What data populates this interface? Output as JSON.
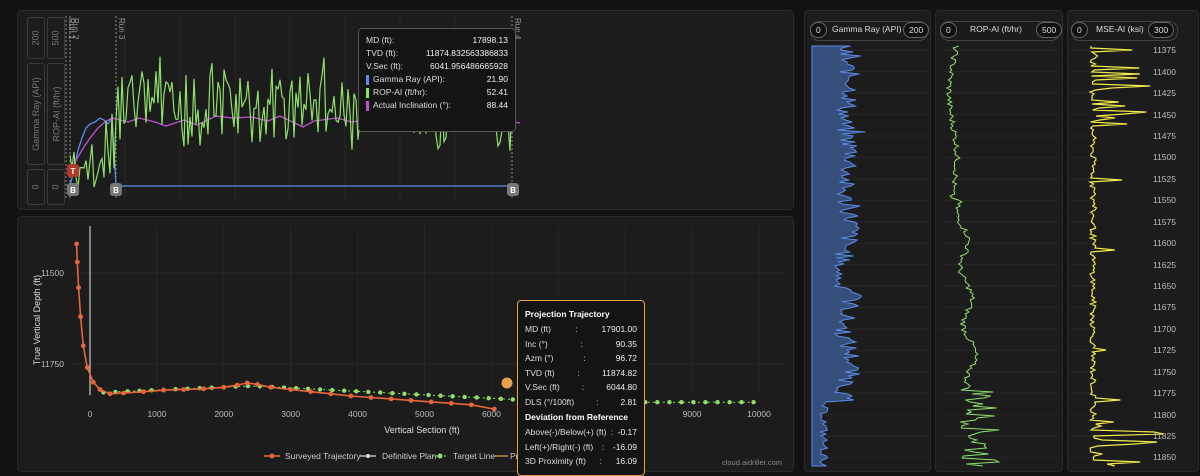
{
  "top_chart": {
    "axes": [
      {
        "label": "Gamma Ray (API)",
        "max": "200",
        "min": "0"
      },
      {
        "label": "ROP-AI (ft/hr)",
        "max": "500",
        "min": "0"
      }
    ],
    "run_labels": [
      "Run 1",
      "Run 2",
      "Run 3",
      "Run 4"
    ],
    "markers": [
      {
        "letter": "T",
        "color": "#b03a2e"
      },
      {
        "letter": "B",
        "color": "#777777"
      },
      {
        "letter": "B",
        "color": "#777777"
      },
      {
        "letter": "B",
        "color": "#777777"
      }
    ],
    "tooltip": {
      "md_label": "MD (ft):",
      "md_value": "17898.13",
      "tvd_label": "TVD (ft):",
      "tvd_value": "11874.832563386833",
      "vsec_label": "V.Sec (ft):",
      "vsec_value": "6041.956486665928",
      "series": [
        {
          "label": "Gamma Ray (API):",
          "value": "21.90",
          "color": "#5b8de8"
        },
        {
          "label": "ROP-AI (ft/hr):",
          "value": "52.41",
          "color": "#8fe06a"
        },
        {
          "label": "Actual Inclination (°):",
          "value": "88.44",
          "color": "#c050d0"
        }
      ]
    }
  },
  "section_chart": {
    "ylabel": "True Vertical Depth (ft)",
    "xlabel": "Vertical Section (ft)",
    "y_ticks": [
      "11500",
      "11750"
    ],
    "x_ticks": [
      "0",
      "1000",
      "2000",
      "3000",
      "4000",
      "5000",
      "6000",
      "8000",
      "9000",
      "10000"
    ],
    "legend": [
      {
        "label": "Surveyed Trajectory",
        "color": "#e8653a"
      },
      {
        "label": "Definitive Plan",
        "color": "#dddddd"
      },
      {
        "label": "Target Line",
        "color": "#8fe06a"
      },
      {
        "label": "Pr",
        "color": "#e8a04a"
      }
    ],
    "watermark": "cloud.aidriller.com",
    "projection": {
      "title": "Projection Trajectory",
      "rows": [
        {
          "k": "MD (ft)",
          "v": "17901.00"
        },
        {
          "k": "Inc (°)",
          "v": "90.35"
        },
        {
          "k": "Azm (°)",
          "v": "96.72"
        },
        {
          "k": "TVD (ft)",
          "v": "11874.82"
        },
        {
          "k": "V.Sec (ft)",
          "v": "6044.80"
        },
        {
          "k": "DLS (°/100ft)",
          "v": "2.81"
        }
      ],
      "dev_title": "Deviation from Reference",
      "dev_rows": [
        {
          "k": "Above(-)/Below(+) (ft)",
          "v": "-0.17"
        },
        {
          "k": "Left(+)/Right(-) (ft)",
          "v": "-16.09"
        },
        {
          "k": "3D Proximity (ft)",
          "v": "16.09"
        }
      ]
    }
  },
  "tracks": [
    {
      "min": "0",
      "label": "Gamma Ray (API)",
      "max": "200",
      "color": "#5b8de8"
    },
    {
      "min": "0",
      "label": "ROP-AI (ft/hr)",
      "max": "500",
      "color": "#8fe06a"
    },
    {
      "min": "0",
      "label": "MSE-AI (ksi)",
      "max": "300",
      "color": "#f2ea4a"
    }
  ],
  "depth_ticks": [
    "11375",
    "11400",
    "11425",
    "11450",
    "11475",
    "11500",
    "11525",
    "11550",
    "11575",
    "11600",
    "11625",
    "11650",
    "11675",
    "11700",
    "11725",
    "11750",
    "11775",
    "11800",
    "11825",
    "11850"
  ],
  "colors": {
    "gamma": "#5b8de8",
    "rop": "#8fe06a",
    "inclination": "#c050d0",
    "surveyed": "#e8653a",
    "target": "#8fe06a",
    "mse": "#f2ea4a"
  }
}
